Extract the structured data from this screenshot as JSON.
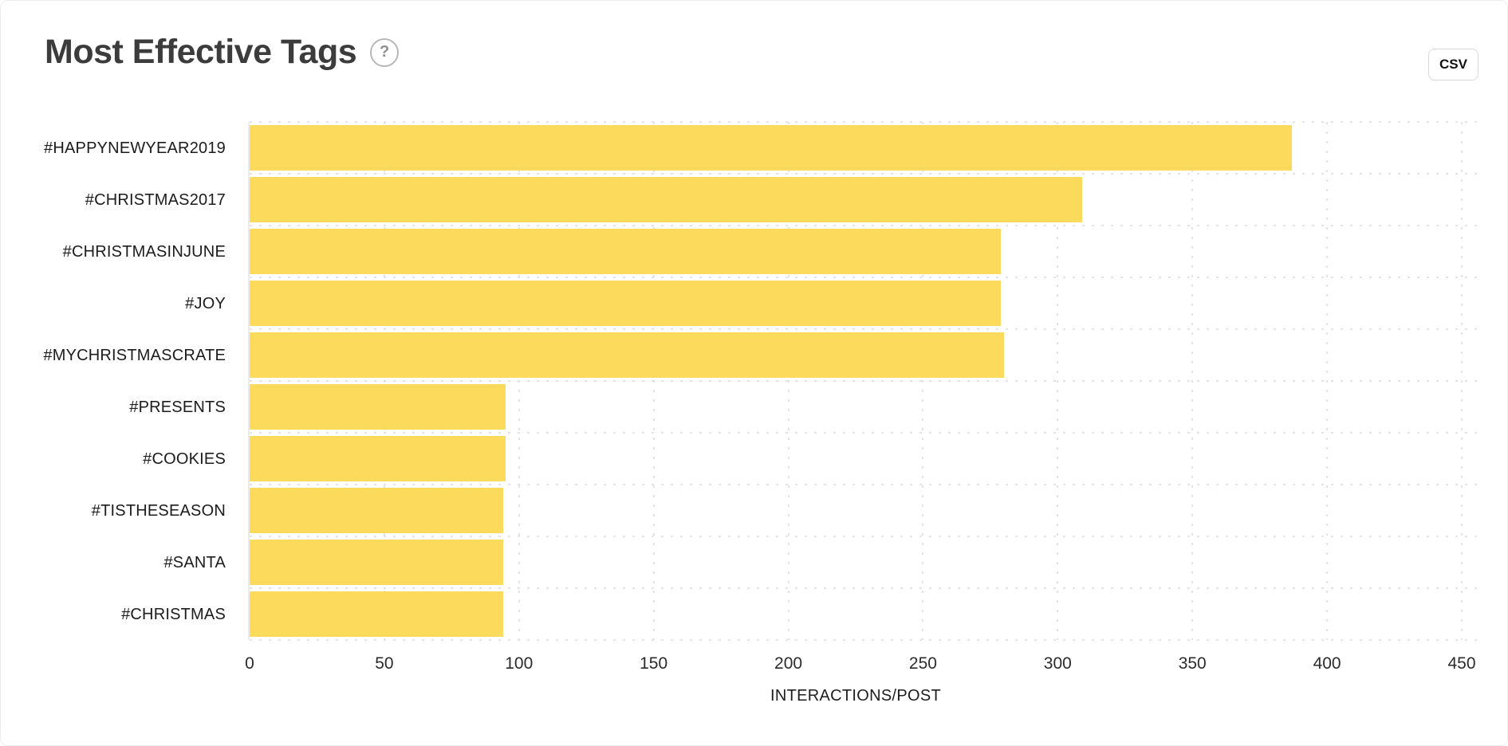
{
  "header": {
    "title": "Most Effective Tags",
    "help_glyph": "?",
    "csv_label": "CSV"
  },
  "chart_data": {
    "type": "bar",
    "orientation": "horizontal",
    "title": "Most Effective Tags",
    "categories": [
      "#HAPPYNEWYEAR2019",
      "#CHRISTMAS2017",
      "#CHRISTMASINJUNE",
      "#JOY",
      "#MYCHRISTMASCRATE",
      "#PRESENTS",
      "#COOKIES",
      "#TISTHESEASON",
      "#SANTA",
      "#CHRISTMAS"
    ],
    "values": [
      387,
      309,
      279,
      279,
      280,
      95,
      95,
      94,
      94,
      94
    ],
    "xlabel": "INTERACTIONS/POST",
    "ylabel": "",
    "xlim": [
      0,
      450
    ],
    "x_ticks": [
      0,
      50,
      100,
      150,
      200,
      250,
      300,
      350,
      400,
      450
    ],
    "grid": "dotted",
    "legend": "none"
  },
  "colors": {
    "bar": "#FCDB5C",
    "grid": "#e3e3e3",
    "axis_line": "#ececec"
  }
}
